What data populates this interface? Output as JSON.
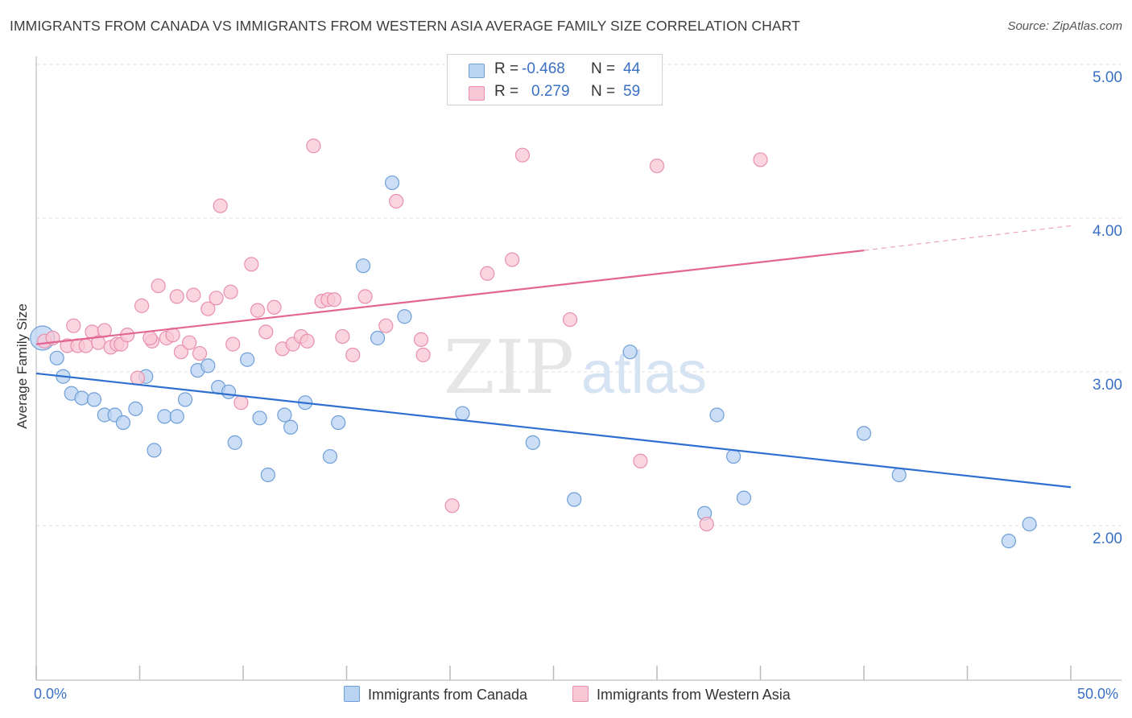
{
  "title": "IMMIGRANTS FROM CANADA VS IMMIGRANTS FROM WESTERN ASIA AVERAGE FAMILY SIZE CORRELATION CHART",
  "source": "Source: ZipAtlas.com",
  "watermark": {
    "zip": "ZIP",
    "atlas": "atlas"
  },
  "colors": {
    "canada_fill": "#b9d3f2",
    "canada_stroke": "#6f9fd9",
    "canada_line": "#2f6fd0",
    "wasia_fill": "#f8c7d6",
    "wasia_stroke": "#e890ad",
    "wasia_line": "#e26592",
    "tick_text": "#3a70c4",
    "grid": "#dddddd"
  },
  "stats": {
    "row1": {
      "r_label": "R =",
      "r_value": "-0.468",
      "n_label": "N =",
      "n_value": "44"
    },
    "row2": {
      "r_label": "R =",
      "r_value": "0.279",
      "n_label": "N =",
      "n_value": "59"
    }
  },
  "legend": {
    "item1": "Immigrants from Canada",
    "item2": "Immigrants from Western Asia"
  },
  "chart_data": {
    "type": "scatter",
    "title": "IMMIGRANTS FROM CANADA VS IMMIGRANTS FROM WESTERN ASIA AVERAGE FAMILY SIZE CORRELATION CHART",
    "xlabel": "",
    "ylabel": "Average Family Size",
    "xlim": [
      0,
      50
    ],
    "ylim": [
      1.0,
      5.1
    ],
    "x_tick_labels": [
      "0.0%",
      "50.0%"
    ],
    "y_ticks": [
      2.0,
      3.0,
      4.0,
      5.0
    ],
    "y_tick_labels": [
      "2.00",
      "3.00",
      "4.00",
      "5.00"
    ],
    "grid": true,
    "legend_position": "bottom",
    "series": [
      {
        "name": "Immigrants from Canada",
        "trend": {
          "x0": 0.0,
          "y0": 2.99,
          "x1": 50.0,
          "y1": 2.25
        },
        "points": [
          [
            0.3,
            3.22
          ],
          [
            1.0,
            3.09
          ],
          [
            1.3,
            2.97
          ],
          [
            1.7,
            2.86
          ],
          [
            2.2,
            2.83
          ],
          [
            2.8,
            2.82
          ],
          [
            3.3,
            2.72
          ],
          [
            3.8,
            2.72
          ],
          [
            4.2,
            2.67
          ],
          [
            4.8,
            2.76
          ],
          [
            5.3,
            2.97
          ],
          [
            5.7,
            2.49
          ],
          [
            6.2,
            2.71
          ],
          [
            6.8,
            2.71
          ],
          [
            7.2,
            2.82
          ],
          [
            7.8,
            3.01
          ],
          [
            8.3,
            3.04
          ],
          [
            8.8,
            2.9
          ],
          [
            9.3,
            2.87
          ],
          [
            9.6,
            2.54
          ],
          [
            10.2,
            3.08
          ],
          [
            10.8,
            2.7
          ],
          [
            11.2,
            2.33
          ],
          [
            12.0,
            2.72
          ],
          [
            12.3,
            2.64
          ],
          [
            13.0,
            2.8
          ],
          [
            14.2,
            2.45
          ],
          [
            14.6,
            2.67
          ],
          [
            15.8,
            3.69
          ],
          [
            16.5,
            3.22
          ],
          [
            17.2,
            4.23
          ],
          [
            17.8,
            3.36
          ],
          [
            20.6,
            2.73
          ],
          [
            24.0,
            2.54
          ],
          [
            26.0,
            2.17
          ],
          [
            28.7,
            3.13
          ],
          [
            32.3,
            2.08
          ],
          [
            32.9,
            2.72
          ],
          [
            33.7,
            2.45
          ],
          [
            34.2,
            2.18
          ],
          [
            40.0,
            2.6
          ],
          [
            41.7,
            2.33
          ],
          [
            47.0,
            1.9
          ],
          [
            48.0,
            2.01
          ]
        ]
      },
      {
        "name": "Immigrants from Western Asia",
        "trend": {
          "x0": 0.0,
          "y0": 3.18,
          "x1": 40.0,
          "y1": 3.79,
          "dash_to_x": 50.0,
          "dash_to_y": 3.95
        },
        "points": [
          [
            0.4,
            3.2
          ],
          [
            0.8,
            3.22
          ],
          [
            1.5,
            3.17
          ],
          [
            1.8,
            3.3
          ],
          [
            2.0,
            3.17
          ],
          [
            2.4,
            3.17
          ],
          [
            2.7,
            3.26
          ],
          [
            3.0,
            3.19
          ],
          [
            3.3,
            3.27
          ],
          [
            3.6,
            3.16
          ],
          [
            3.9,
            3.18
          ],
          [
            4.1,
            3.18
          ],
          [
            4.4,
            3.24
          ],
          [
            4.9,
            2.96
          ],
          [
            5.1,
            3.43
          ],
          [
            5.6,
            3.2
          ],
          [
            5.9,
            3.56
          ],
          [
            6.3,
            3.22
          ],
          [
            6.6,
            3.24
          ],
          [
            6.8,
            3.49
          ],
          [
            7.0,
            3.13
          ],
          [
            7.4,
            3.19
          ],
          [
            7.6,
            3.5
          ],
          [
            7.9,
            3.12
          ],
          [
            8.3,
            3.41
          ],
          [
            8.7,
            3.48
          ],
          [
            8.9,
            4.08
          ],
          [
            9.4,
            3.52
          ],
          [
            9.9,
            2.8
          ],
          [
            10.4,
            3.7
          ],
          [
            10.7,
            3.4
          ],
          [
            11.1,
            3.26
          ],
          [
            11.5,
            3.42
          ],
          [
            11.9,
            3.15
          ],
          [
            12.4,
            3.18
          ],
          [
            12.8,
            3.23
          ],
          [
            13.1,
            3.2
          ],
          [
            13.4,
            4.47
          ],
          [
            13.8,
            3.46
          ],
          [
            14.1,
            3.47
          ],
          [
            14.4,
            3.47
          ],
          [
            14.8,
            3.23
          ],
          [
            15.3,
            3.11
          ],
          [
            15.9,
            3.49
          ],
          [
            16.9,
            3.3
          ],
          [
            17.4,
            4.11
          ],
          [
            18.6,
            3.21
          ],
          [
            18.7,
            3.11
          ],
          [
            20.1,
            2.13
          ],
          [
            21.8,
            3.64
          ],
          [
            23.0,
            3.73
          ],
          [
            23.5,
            4.41
          ],
          [
            25.8,
            3.34
          ],
          [
            29.2,
            2.42
          ],
          [
            30.0,
            4.34
          ],
          [
            32.4,
            2.01
          ],
          [
            35.0,
            4.38
          ],
          [
            9.5,
            3.18
          ],
          [
            5.5,
            3.22
          ]
        ]
      }
    ]
  }
}
